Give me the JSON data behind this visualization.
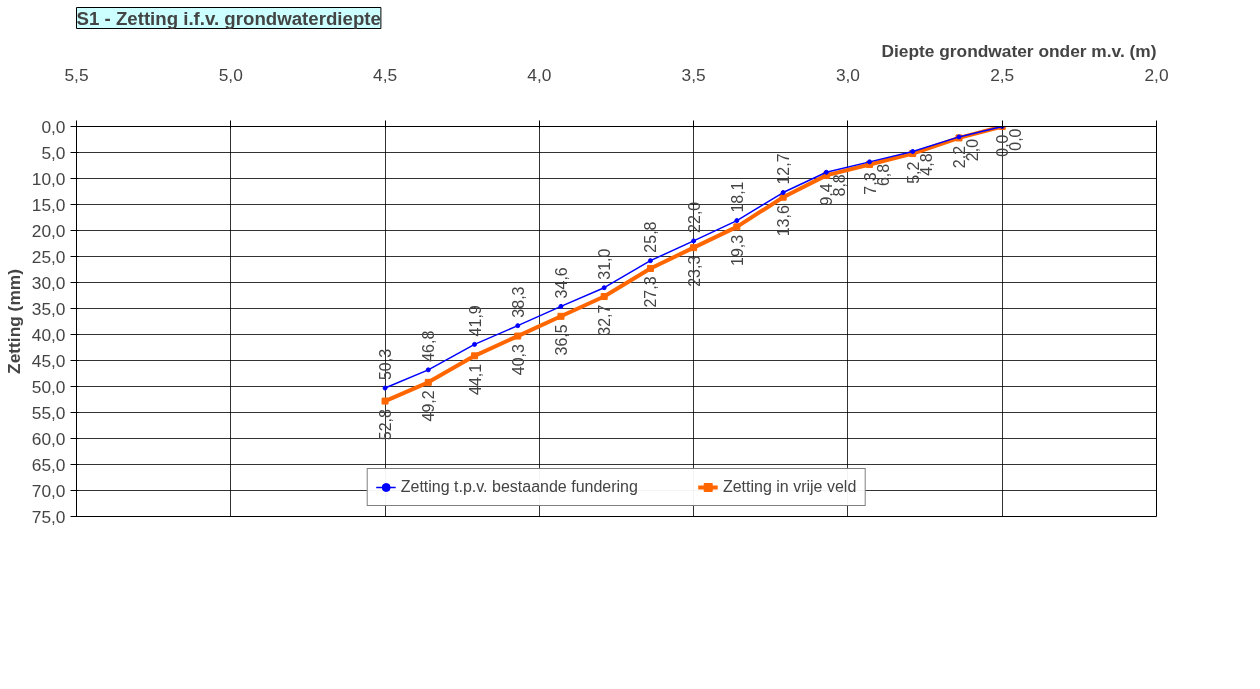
{
  "chart_data": {
    "type": "line",
    "title": "S1 - Zetting i.f.v. grondwaterdiepte",
    "xlabel": "Diepte grondwater onder m.v. (m)",
    "ylabel": "Zetting (mm)",
    "x": [
      4.5,
      4.36,
      4.21,
      4.07,
      3.93,
      3.79,
      3.64,
      3.5,
      3.36,
      3.21,
      3.07,
      2.93,
      2.79,
      2.64,
      2.5
    ],
    "series": [
      {
        "name": "Zetting t.p.v. bestaande fundering",
        "color": "#0000ff",
        "marker": "circle",
        "values": [
          50.3,
          46.8,
          41.9,
          38.3,
          34.6,
          31.0,
          25.8,
          22.0,
          18.1,
          12.7,
          8.8,
          6.8,
          4.8,
          2.0,
          0.0
        ],
        "value_labels": [
          "50,3",
          "46,8",
          "41,9",
          "38,3",
          "34,6",
          "31,0",
          "25,8",
          "22,0",
          "18,1",
          "12,7",
          "8,8",
          "6,8",
          "4,8",
          "2,0",
          "0,0"
        ]
      },
      {
        "name": "Zetting in vrije veld",
        "color": "#ff6600",
        "marker": "square",
        "values": [
          52.8,
          49.2,
          44.1,
          40.3,
          36.5,
          32.7,
          27.3,
          23.3,
          19.3,
          13.6,
          9.4,
          7.3,
          5.2,
          2.2,
          0.0
        ],
        "value_labels": [
          "52,8",
          "49,2",
          "44,1",
          "40,3",
          "36,5",
          "32,7",
          "27,3",
          "23,3",
          "19,3",
          "13,6",
          "9,4",
          "7,3",
          "5,2",
          "2,2",
          "0,0"
        ]
      }
    ],
    "xlim": [
      5.5,
      2.0
    ],
    "ylim": [
      75,
      0
    ],
    "xticks": [
      {
        "value": 5.5,
        "label": "5,5"
      },
      {
        "value": 5.0,
        "label": "5,0"
      },
      {
        "value": 4.5,
        "label": "4,5"
      },
      {
        "value": 4.0,
        "label": "4,0"
      },
      {
        "value": 3.5,
        "label": "3,5"
      },
      {
        "value": 3.0,
        "label": "3,0"
      },
      {
        "value": 2.5,
        "label": "2,5"
      },
      {
        "value": 2.0,
        "label": "2,0"
      }
    ],
    "yticks": [
      {
        "value": 0,
        "label": "0,0"
      },
      {
        "value": 5,
        "label": "5,0"
      },
      {
        "value": 10,
        "label": "10,0"
      },
      {
        "value": 15,
        "label": "15,0"
      },
      {
        "value": 20,
        "label": "20,0"
      },
      {
        "value": 25,
        "label": "25,0"
      },
      {
        "value": 30,
        "label": "30,0"
      },
      {
        "value": 35,
        "label": "35,0"
      },
      {
        "value": 40,
        "label": "40,0"
      },
      {
        "value": 45,
        "label": "45,0"
      },
      {
        "value": 50,
        "label": "50,0"
      },
      {
        "value": 55,
        "label": "55,0"
      },
      {
        "value": 60,
        "label": "60,0"
      },
      {
        "value": 65,
        "label": "65,0"
      },
      {
        "value": 70,
        "label": "70,0"
      },
      {
        "value": 75,
        "label": "75,0"
      }
    ],
    "grid": true,
    "legend": "bottom",
    "data_labels": true
  }
}
